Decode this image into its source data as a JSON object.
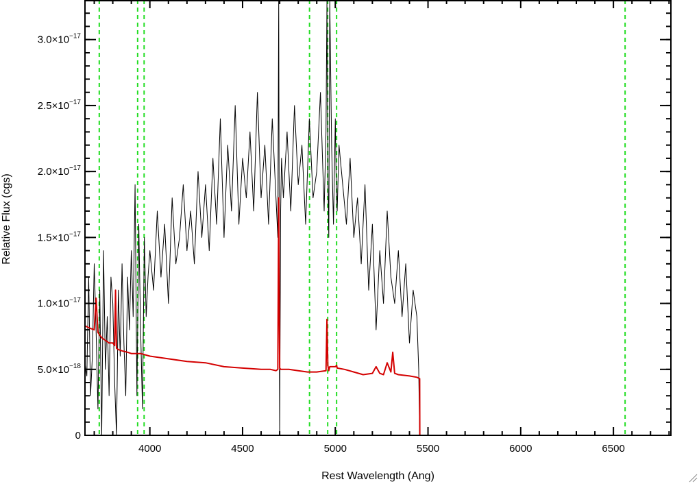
{
  "chart_data": {
    "type": "line",
    "xlabel": "Rest Wavelength (Ang)",
    "ylabel": "Relative Flux (cgs)",
    "xlim": [
      3650,
      6810
    ],
    "ylim": [
      0,
      3.3e-17
    ],
    "x_ticks": [
      {
        "value": 4000,
        "label": "4000"
      },
      {
        "value": 4500,
        "label": "4500"
      },
      {
        "value": 5000,
        "label": "5000"
      },
      {
        "value": 5500,
        "label": "5500"
      },
      {
        "value": 6000,
        "label": "6000"
      },
      {
        "value": 6500,
        "label": "6500"
      }
    ],
    "y_ticks": [
      {
        "value": 0,
        "mantissa": "0",
        "exponent": ""
      },
      {
        "value": 5e-18,
        "mantissa": "5.0×10",
        "exponent": "−18"
      },
      {
        "value": 1e-17,
        "mantissa": "1.0×10",
        "exponent": "−17"
      },
      {
        "value": 1.5e-17,
        "mantissa": "1.5×10",
        "exponent": "−17"
      },
      {
        "value": 2e-17,
        "mantissa": "2.0×10",
        "exponent": "−17"
      },
      {
        "value": 2.5e-17,
        "mantissa": "2.5×10",
        "exponent": "−17"
      },
      {
        "value": 3e-17,
        "mantissa": "3.0×10",
        "exponent": "−17"
      }
    ],
    "reference_lines_x": [
      3727,
      3934,
      3969,
      4861,
      4959,
      5007,
      6563
    ],
    "series": [
      {
        "color": "#000000",
        "x": [
          3650,
          3660,
          3670,
          3680,
          3690,
          3700,
          3710,
          3720,
          3730,
          3740,
          3750,
          3760,
          3770,
          3780,
          3790,
          3800,
          3810,
          3820,
          3830,
          3840,
          3850,
          3860,
          3870,
          3880,
          3890,
          3900,
          3910,
          3920,
          3930,
          3940,
          3950,
          3960,
          3970,
          3980,
          3990,
          4000,
          4020,
          4040,
          4060,
          4080,
          4100,
          4120,
          4140,
          4160,
          4180,
          4200,
          4220,
          4240,
          4260,
          4280,
          4300,
          4320,
          4340,
          4360,
          4380,
          4400,
          4420,
          4440,
          4460,
          4480,
          4500,
          4520,
          4540,
          4560,
          4580,
          4600,
          4620,
          4640,
          4660,
          4680,
          4690,
          4695,
          4700,
          4705,
          4710,
          4720,
          4740,
          4760,
          4780,
          4800,
          4820,
          4840,
          4860,
          4880,
          4900,
          4920,
          4940,
          4950,
          4955,
          4960,
          4965,
          4970,
          4980,
          4990,
          5000,
          5005,
          5010,
          5020,
          5040,
          5060,
          5080,
          5100,
          5120,
          5140,
          5160,
          5180,
          5200,
          5220,
          5240,
          5260,
          5280,
          5300,
          5320,
          5340,
          5360,
          5380,
          5400,
          5420,
          5440,
          5450,
          5455
        ],
        "y": [
          5.5e-18,
          4.5e-18,
          1.2e-17,
          3e-18,
          6e-18,
          1.3e-17,
          8e-18,
          2e-18,
          1.1e-17,
          0.0,
          1.4e-17,
          5e-18,
          9e-18,
          3e-18,
          1.2e-17,
          1e-17,
          4e-18,
          0.0,
          1.1e-17,
          6e-18,
          1.3e-17,
          7e-18,
          3e-18,
          1.2e-17,
          8e-18,
          1.4e-17,
          9e-18,
          1.9e-17,
          3e-18,
          1.6e-17,
          8e-18,
          2e-18,
          1.5e-17,
          9e-18,
          1.2e-17,
          1.4e-17,
          1.1e-17,
          1.7e-17,
          1.2e-17,
          1.6e-17,
          1e-17,
          1.8e-17,
          1.3e-17,
          1.5e-17,
          1.9e-17,
          1.4e-17,
          1.7e-17,
          1.3e-17,
          2e-17,
          1.5e-17,
          1.9e-17,
          1.4e-17,
          2.1e-17,
          1.6e-17,
          2.4e-17,
          1.5e-17,
          2.2e-17,
          1.7e-17,
          2.5e-17,
          1.6e-17,
          2.1e-17,
          1.8e-17,
          2.3e-17,
          1.7e-17,
          2.6e-17,
          1.8e-17,
          2.2e-17,
          1.6e-17,
          2.4e-17,
          1.8e-17,
          1.5e-17,
          3.3e-17,
          0.0,
          1.7e-17,
          2.1e-17,
          1.8e-17,
          2.3e-17,
          1.7e-17,
          2.5e-17,
          1.9e-17,
          2.2e-17,
          1.6e-17,
          2.4e-17,
          1.8e-17,
          2e-17,
          2.6e-17,
          1.7e-17,
          2.3e-17,
          3.3e-17,
          2e-17,
          1.5e-17,
          3.3e-17,
          2.2e-17,
          1.6e-17,
          2.4e-17,
          1.9e-17,
          1.7e-17,
          2.2e-17,
          1.9e-17,
          1.6e-17,
          2.1e-17,
          1.5e-17,
          1.8e-17,
          1.3e-17,
          1.9e-17,
          1.1e-17,
          1.6e-17,
          8e-18,
          1.4e-17,
          1e-17,
          1.7e-17,
          1.2e-17,
          1e-17,
          1.4e-17,
          9e-18,
          1.3e-17,
          7e-18,
          1.1e-17,
          9e-18,
          5e-18,
          0.0
        ]
      },
      {
        "color": "#d40000",
        "x": [
          3650,
          3680,
          3700,
          3710,
          3720,
          3730,
          3740,
          3760,
          3780,
          3800,
          3810,
          3815,
          3820,
          3830,
          3850,
          3880,
          3900,
          3950,
          4000,
          4100,
          4200,
          4300,
          4400,
          4500,
          4600,
          4650,
          4680,
          4690,
          4695,
          4700,
          4705,
          4710,
          4750,
          4800,
          4850,
          4900,
          4950,
          4955,
          4960,
          4965,
          4970,
          5000,
          5007,
          5010,
          5050,
          5100,
          5150,
          5200,
          5220,
          5240,
          5260,
          5280,
          5300,
          5310,
          5320,
          5340,
          5400,
          5440,
          5455,
          5456,
          5500,
          6000,
          6500,
          6810
        ],
        "y": [
          8.3e-18,
          8.1e-18,
          8e-18,
          1.04e-17,
          7.8e-18,
          7.6e-18,
          7.4e-18,
          7.2e-18,
          7e-18,
          7e-18,
          6.8e-18,
          1.1e-17,
          6.6e-18,
          6.5e-18,
          6.4e-18,
          6.3e-18,
          6.2e-18,
          6.2e-18,
          6e-18,
          5.8e-18,
          5.6e-18,
          5.5e-18,
          5.2e-18,
          5.1e-18,
          5e-18,
          5e-18,
          4.9e-18,
          5e-18,
          1.8e-17,
          5.1e-18,
          5e-18,
          5e-18,
          5e-18,
          4.9e-18,
          4.8e-18,
          4.8e-18,
          4.9e-18,
          8.8e-18,
          5.3e-18,
          4.9e-18,
          5.2e-18,
          5.2e-18,
          5.3e-18,
          5.1e-18,
          5e-18,
          4.8e-18,
          4.6e-18,
          4.7e-18,
          5.2e-18,
          4.7e-18,
          4.6e-18,
          5.5e-18,
          4.8e-18,
          6.3e-18,
          4.7e-18,
          4.6e-18,
          4.5e-18,
          4.4e-18,
          4.3e-18,
          0.0,
          0.0,
          0.0,
          0.0,
          0.0
        ]
      }
    ],
    "colors": {
      "axes": "#000000",
      "reference_lines": "#22dd22",
      "spectrum": "#000000",
      "model": "#d40000"
    }
  }
}
